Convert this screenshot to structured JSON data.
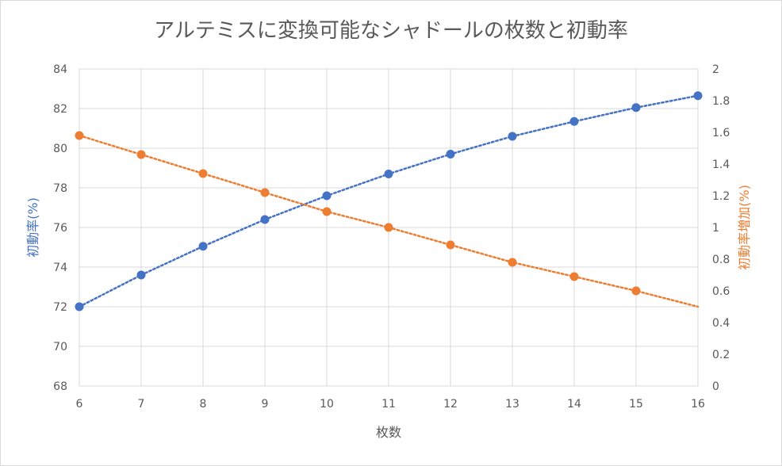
{
  "chart_data": {
    "type": "line",
    "title": "アルテミスに変換可能なシャドールの枚数と初動率",
    "xlabel": "枚数",
    "ylabel_left": "初動率(%)",
    "ylabel_right": "初動率増加(%)",
    "x": [
      6,
      7,
      8,
      9,
      10,
      11,
      12,
      13,
      14,
      15,
      16
    ],
    "xlim": [
      6,
      16
    ],
    "ylim_left": [
      68,
      84
    ],
    "ylim_right": [
      0,
      2
    ],
    "yticks_left": [
      68,
      70,
      72,
      74,
      76,
      78,
      80,
      82,
      84
    ],
    "yticks_right": [
      "0",
      "0.2",
      "0.4",
      "0.6",
      "0.8",
      "1",
      "1.2",
      "1.4",
      "1.6",
      "1.8",
      "2"
    ],
    "grid": true,
    "series": [
      {
        "axis": "left",
        "color": "#4472c4",
        "x": [
          6,
          7,
          8,
          9,
          10,
          11,
          12,
          13,
          14,
          15,
          16
        ],
        "values": [
          72.0,
          73.6,
          75.05,
          76.4,
          77.6,
          78.7,
          79.7,
          80.6,
          81.35,
          82.05,
          82.65
        ]
      },
      {
        "axis": "right",
        "color": "#ed7d31",
        "x": [
          6,
          7,
          8,
          9,
          10,
          11,
          12,
          13,
          14,
          15
        ],
        "values": [
          1.58,
          1.46,
          1.34,
          1.22,
          1.1,
          1.0,
          0.89,
          0.78,
          0.69,
          0.6
        ],
        "trend_end": 0.5
      }
    ]
  }
}
